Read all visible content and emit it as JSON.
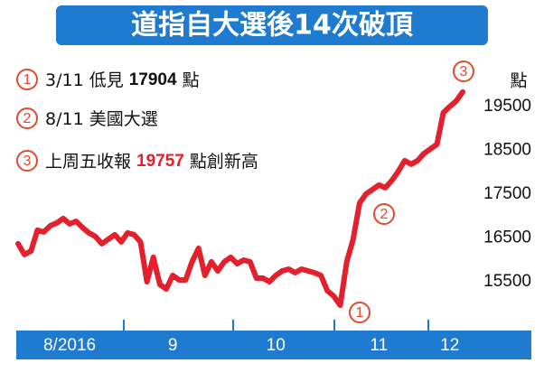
{
  "chart_data": {
    "type": "line",
    "title": "道指自大選後14次破頂",
    "y_label": "點",
    "categories": [
      null,
      null,
      null,
      null,
      null,
      null,
      null,
      null,
      "8/2016",
      null,
      null,
      null,
      null,
      null,
      null,
      null,
      null,
      null,
      null,
      null,
      null,
      null,
      null,
      null,
      "9",
      null,
      null,
      null,
      null,
      null,
      null,
      null,
      null,
      null,
      null,
      null,
      null,
      null,
      null,
      null,
      "10",
      null,
      null,
      null,
      null,
      null,
      null,
      null,
      null,
      null,
      null,
      null,
      null,
      null,
      null,
      null,
      "11",
      null,
      null,
      null,
      null,
      null,
      null,
      null,
      null,
      null,
      null,
      "12",
      null,
      null
    ],
    "series": [
      {
        "name": null,
        "color": "#e3202c",
        "values": [
          16366,
          16119,
          16200,
          16675,
          16634,
          16778,
          16840,
          16943,
          16820,
          16880,
          16737,
          16613,
          16531,
          16366,
          16469,
          16572,
          16407,
          16613,
          16572,
          16407,
          15500,
          16057,
          15438,
          15335,
          15644,
          15541,
          15541,
          15954,
          16263,
          15644,
          15954,
          15747,
          15954,
          16057,
          15912,
          15994,
          15954,
          15582,
          15582,
          15500,
          15644,
          15747,
          15788,
          15706,
          15788,
          15747,
          15706,
          15644,
          15294,
          15170,
          14964,
          15954,
          16469,
          17294,
          17500,
          17603,
          17706,
          17644,
          17809,
          18015,
          18263,
          18180,
          18263,
          18428,
          18531,
          18634,
          19356,
          19500,
          19624,
          19830
        ]
      }
    ],
    "ylim": [
      14510,
      20280
    ],
    "yticks": [
      15500,
      16500,
      17500,
      18500,
      19500
    ],
    "grid": false,
    "annotations": [
      {
        "marker": "1",
        "pre": "3/11 低見",
        "value": "17904",
        "post": "點"
      },
      {
        "marker": "2",
        "pre": "8/11 美國大選"
      },
      {
        "marker": "3",
        "pre": "上周五收報",
        "value": "19757",
        "post": "點創新高"
      }
    ]
  }
}
